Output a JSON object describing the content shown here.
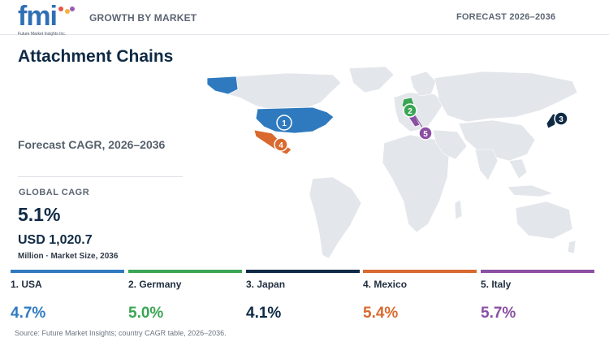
{
  "header": {
    "logo_text": "fmi",
    "logo_tagline": "Future Market Insights Inc.",
    "left_label": "GROWTH BY MARKET",
    "right_label": "FORECAST 2026–2036"
  },
  "summary": {
    "title": "Attachment Chains",
    "subtitle": "Forecast CAGR, 2026–2036",
    "global_cagr_label": "GLOBAL CAGR",
    "global_cagr_value": "5.1%",
    "market_size_value": "USD 1,020.7",
    "market_size_label": "Million · Market Size, 2036"
  },
  "map": {
    "base_color": "#e3e6ea",
    "markers": [
      {
        "rank": "1",
        "country": "USA",
        "color": "#2f7abf"
      },
      {
        "rank": "2",
        "country": "Germany",
        "color": "#3aa655"
      },
      {
        "rank": "3",
        "country": "Japan",
        "color": "#0f2a44"
      },
      {
        "rank": "4",
        "country": "Mexico",
        "color": "#d9692e"
      },
      {
        "rank": "5",
        "country": "Italy",
        "color": "#8b4fa3"
      }
    ]
  },
  "countries": [
    {
      "name": "1. USA",
      "cagr": "4.7%",
      "color": "#2f7abf"
    },
    {
      "name": "2. Germany",
      "cagr": "5.0%",
      "color": "#3aa655"
    },
    {
      "name": "3. Japan",
      "cagr": "4.1%",
      "color": "#0f2a44"
    },
    {
      "name": "4. Mexico",
      "cagr": "5.4%",
      "color": "#d9692e"
    },
    {
      "name": "5. Italy",
      "cagr": "5.7%",
      "color": "#8b4fa3"
    }
  ],
  "source": "Source: Future Market Insights; country CAGR table, 2026–2036."
}
